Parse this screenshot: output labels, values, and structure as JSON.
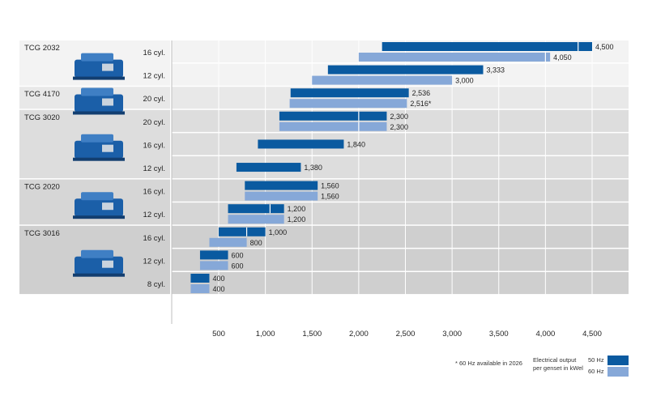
{
  "chart_data": {
    "type": "bar",
    "orientation": "horizontal",
    "xlim": [
      200,
      4700
    ],
    "x_ticks": [
      500,
      1000,
      1500,
      2000,
      2500,
      3000,
      3500,
      4000,
      4500
    ],
    "x_tick_labels": [
      "500",
      "1,000",
      "1,500",
      "2,000",
      "2,500",
      "3,000",
      "3,500",
      "4,000",
      "4,500"
    ],
    "grid": "vertical",
    "series": [
      {
        "name": "50 Hz",
        "color": "#0a5aa0"
      },
      {
        "name": "60 Hz",
        "color": "#86a8d8"
      }
    ],
    "groups": [
      {
        "name": "TCG 2032",
        "bg": "#f3f3f3",
        "icon": "genset-image",
        "rows": [
          {
            "label": "16 cyl.",
            "bars": [
              {
                "series": "50 Hz",
                "start": 2250,
                "end": 4500,
                "label": "4,500",
                "split": 4350
              },
              {
                "series": "60 Hz",
                "start": 2000,
                "end": 4050,
                "label": "4,050",
                "split": 4000
              }
            ]
          },
          {
            "label": "12 cyl.",
            "bars": [
              {
                "series": "50 Hz",
                "start": 1670,
                "end": 3333,
                "label": "3,333"
              },
              {
                "series": "60 Hz",
                "start": 1500,
                "end": 3000,
                "label": "3,000"
              }
            ]
          }
        ]
      },
      {
        "name": "TCG 4170",
        "bg": "#e8e8e8",
        "icon": "genset-image",
        "rows": [
          {
            "label": "20 cyl.",
            "bars": [
              {
                "series": "50 Hz",
                "start": 1270,
                "end": 2536,
                "label": "2,536"
              },
              {
                "series": "60 Hz",
                "start": 1260,
                "end": 2516,
                "label": "2,516*"
              }
            ]
          }
        ]
      },
      {
        "name": "TCG 3020",
        "bg": "#dddddd",
        "icon": "genset-image",
        "rows": [
          {
            "label": "20 cyl.",
            "bars": [
              {
                "series": "50 Hz",
                "start": 1150,
                "end": 2300,
                "label": "2,300",
                "split": 2000
              },
              {
                "series": "60 Hz",
                "start": 1150,
                "end": 2300,
                "label": "2,300",
                "split": 2000
              }
            ]
          },
          {
            "label": "16 cyl.",
            "bars": [
              {
                "series": "50 Hz",
                "start": 920,
                "end": 1840,
                "label": "1,840"
              }
            ]
          },
          {
            "label": "12 cyl.",
            "bars": [
              {
                "series": "50 Hz",
                "start": 690,
                "end": 1380,
                "label": "1,380"
              }
            ]
          }
        ]
      },
      {
        "name": "TCG 2020",
        "bg": "#d6d6d6",
        "icon": "genset-image",
        "rows": [
          {
            "label": "16 cyl.",
            "bars": [
              {
                "series": "50 Hz",
                "start": 780,
                "end": 1560,
                "label": "1,560"
              },
              {
                "series": "60 Hz",
                "start": 780,
                "end": 1560,
                "label": "1,560"
              }
            ]
          },
          {
            "label": "12 cyl.",
            "bars": [
              {
                "series": "50 Hz",
                "start": 600,
                "end": 1200,
                "label": "1,200",
                "split": 1050
              },
              {
                "series": "60 Hz",
                "start": 600,
                "end": 1200,
                "label": "1,200"
              }
            ]
          }
        ]
      },
      {
        "name": "TCG 3016",
        "bg": "#cfcfcf",
        "icon": "genset-image",
        "rows": [
          {
            "label": "16 cyl.",
            "bars": [
              {
                "series": "50 Hz",
                "start": 500,
                "end": 1000,
                "label": "1,000",
                "split": 800
              },
              {
                "series": "60 Hz",
                "start": 400,
                "end": 800,
                "label": "800"
              }
            ]
          },
          {
            "label": "12 cyl.",
            "bars": [
              {
                "series": "50 Hz",
                "start": 300,
                "end": 600,
                "label": "600"
              },
              {
                "series": "60 Hz",
                "start": 300,
                "end": 600,
                "label": "600"
              }
            ]
          },
          {
            "label": "8 cyl.",
            "bars": [
              {
                "series": "50 Hz",
                "start": 200,
                "end": 400,
                "label": "400"
              },
              {
                "series": "60 Hz",
                "start": 200,
                "end": 400,
                "label": "400"
              }
            ]
          }
        ]
      }
    ],
    "footnote": "* 60 Hz available in 2026",
    "legend_title_line1": "Electrical output",
    "legend_title_line2": "per genset in kWel",
    "legend_position": "bottom-right"
  }
}
